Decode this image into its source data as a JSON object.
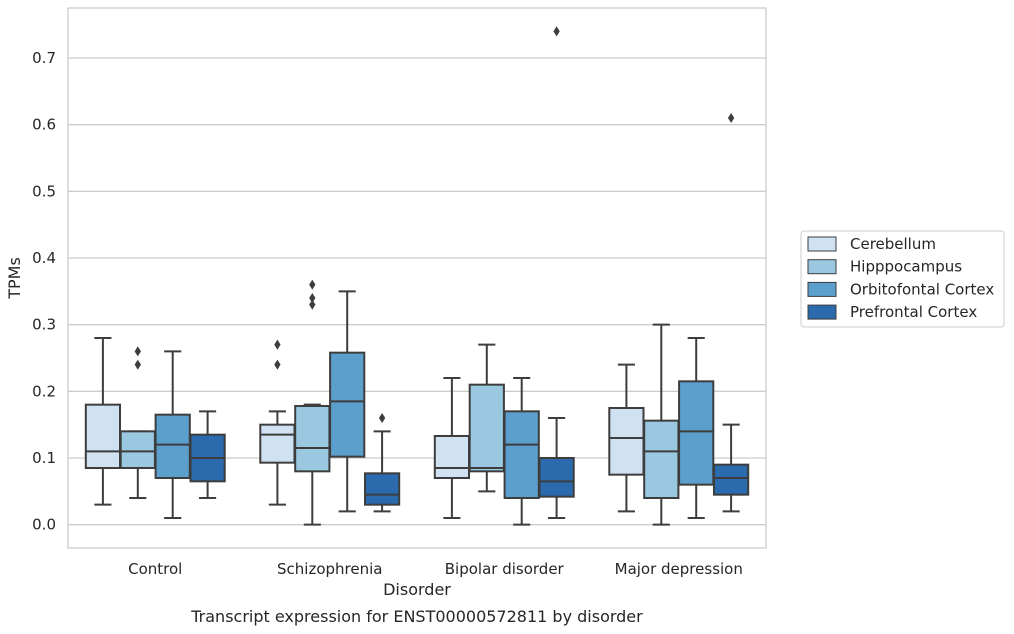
{
  "chart_data": {
    "type": "box",
    "xlabel": "Disorder",
    "ylabel": "TPMs",
    "caption": "Transcript expression for ENST00000572811 by disorder",
    "categories": [
      "Control",
      "Schizophrenia",
      "Bipolar disorder",
      "Major depression"
    ],
    "ylim": [
      -0.035,
      0.775
    ],
    "yticks": [
      0.0,
      0.1,
      0.2,
      0.3,
      0.4,
      0.5,
      0.6,
      0.7
    ],
    "ytick_labels": [
      "0.0",
      "0.1",
      "0.2",
      "0.3",
      "0.4",
      "0.5",
      "0.6",
      "0.7"
    ],
    "grid": "horizontal",
    "legend_position": "right",
    "series": [
      {
        "name": "Cerebellum",
        "color": "#d0e1f2",
        "boxes": [
          {
            "whisker_low": 0.03,
            "q1": 0.085,
            "median": 0.11,
            "q3": 0.18,
            "whisker_high": 0.28,
            "outliers": []
          },
          {
            "whisker_low": 0.03,
            "q1": 0.093,
            "median": 0.135,
            "q3": 0.15,
            "whisker_high": 0.17,
            "outliers": [
              0.24,
              0.27
            ]
          },
          {
            "whisker_low": 0.01,
            "q1": 0.07,
            "median": 0.085,
            "q3": 0.133,
            "whisker_high": 0.22,
            "outliers": []
          },
          {
            "whisker_low": 0.02,
            "q1": 0.075,
            "median": 0.13,
            "q3": 0.175,
            "whisker_high": 0.24,
            "outliers": []
          }
        ]
      },
      {
        "name": "Hipppocampus",
        "color": "#9ac8e0",
        "boxes": [
          {
            "whisker_low": 0.04,
            "q1": 0.085,
            "median": 0.11,
            "q3": 0.14,
            "whisker_high": 0.14,
            "outliers": [
              0.24,
              0.26
            ]
          },
          {
            "whisker_low": 0.0,
            "q1": 0.08,
            "median": 0.115,
            "q3": 0.178,
            "whisker_high": 0.18,
            "outliers": [
              0.33,
              0.34,
              0.36
            ]
          },
          {
            "whisker_low": 0.05,
            "q1": 0.08,
            "median": 0.085,
            "q3": 0.21,
            "whisker_high": 0.27,
            "outliers": []
          },
          {
            "whisker_low": 0.0,
            "q1": 0.04,
            "median": 0.11,
            "q3": 0.156,
            "whisker_high": 0.3,
            "outliers": []
          }
        ]
      },
      {
        "name": "Orbitofontal Cortex",
        "color": "#5b9fcd",
        "boxes": [
          {
            "whisker_low": 0.01,
            "q1": 0.07,
            "median": 0.12,
            "q3": 0.165,
            "whisker_high": 0.26,
            "outliers": []
          },
          {
            "whisker_low": 0.02,
            "q1": 0.102,
            "median": 0.185,
            "q3": 0.258,
            "whisker_high": 0.35,
            "outliers": []
          },
          {
            "whisker_low": 0.0,
            "q1": 0.04,
            "median": 0.12,
            "q3": 0.17,
            "whisker_high": 0.22,
            "outliers": []
          },
          {
            "whisker_low": 0.01,
            "q1": 0.06,
            "median": 0.14,
            "q3": 0.215,
            "whisker_high": 0.28,
            "outliers": []
          }
        ]
      },
      {
        "name": "Prefrontal Cortex",
        "color": "#2a6aad",
        "boxes": [
          {
            "whisker_low": 0.04,
            "q1": 0.065,
            "median": 0.1,
            "q3": 0.135,
            "whisker_high": 0.17,
            "outliers": []
          },
          {
            "whisker_low": 0.02,
            "q1": 0.03,
            "median": 0.045,
            "q3": 0.077,
            "whisker_high": 0.14,
            "outliers": [
              0.16
            ]
          },
          {
            "whisker_low": 0.01,
            "q1": 0.042,
            "median": 0.065,
            "q3": 0.1,
            "whisker_high": 0.16,
            "outliers": [
              0.74
            ]
          },
          {
            "whisker_low": 0.02,
            "q1": 0.045,
            "median": 0.07,
            "q3": 0.09,
            "whisker_high": 0.15,
            "outliers": [
              0.61
            ]
          }
        ]
      }
    ]
  }
}
